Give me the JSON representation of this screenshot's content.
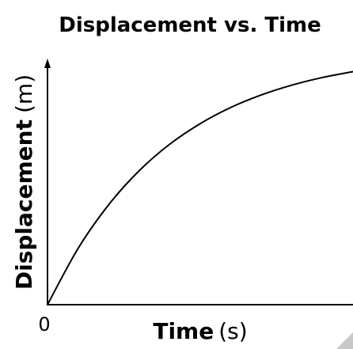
{
  "chart_data": {
    "type": "line",
    "title": "Displacement vs. Time",
    "x_label": "Time",
    "x_unit": "(s)",
    "y_label": "Displacement",
    "y_unit": "(m)",
    "x": [
      0,
      10,
      20,
      30,
      40,
      50,
      60,
      70,
      80,
      90,
      100
    ],
    "series": [
      {
        "color": "#000000",
        "values": [
          0,
          22.9,
          40.7,
          54.6,
          65.4,
          73.8,
          80.4,
          85.5,
          89.5,
          92.6,
          95.0
        ]
      }
    ],
    "xlim": [
      0,
      100
    ],
    "ylim": [
      0,
      100
    ],
    "xticks": [
      0
    ]
  }
}
